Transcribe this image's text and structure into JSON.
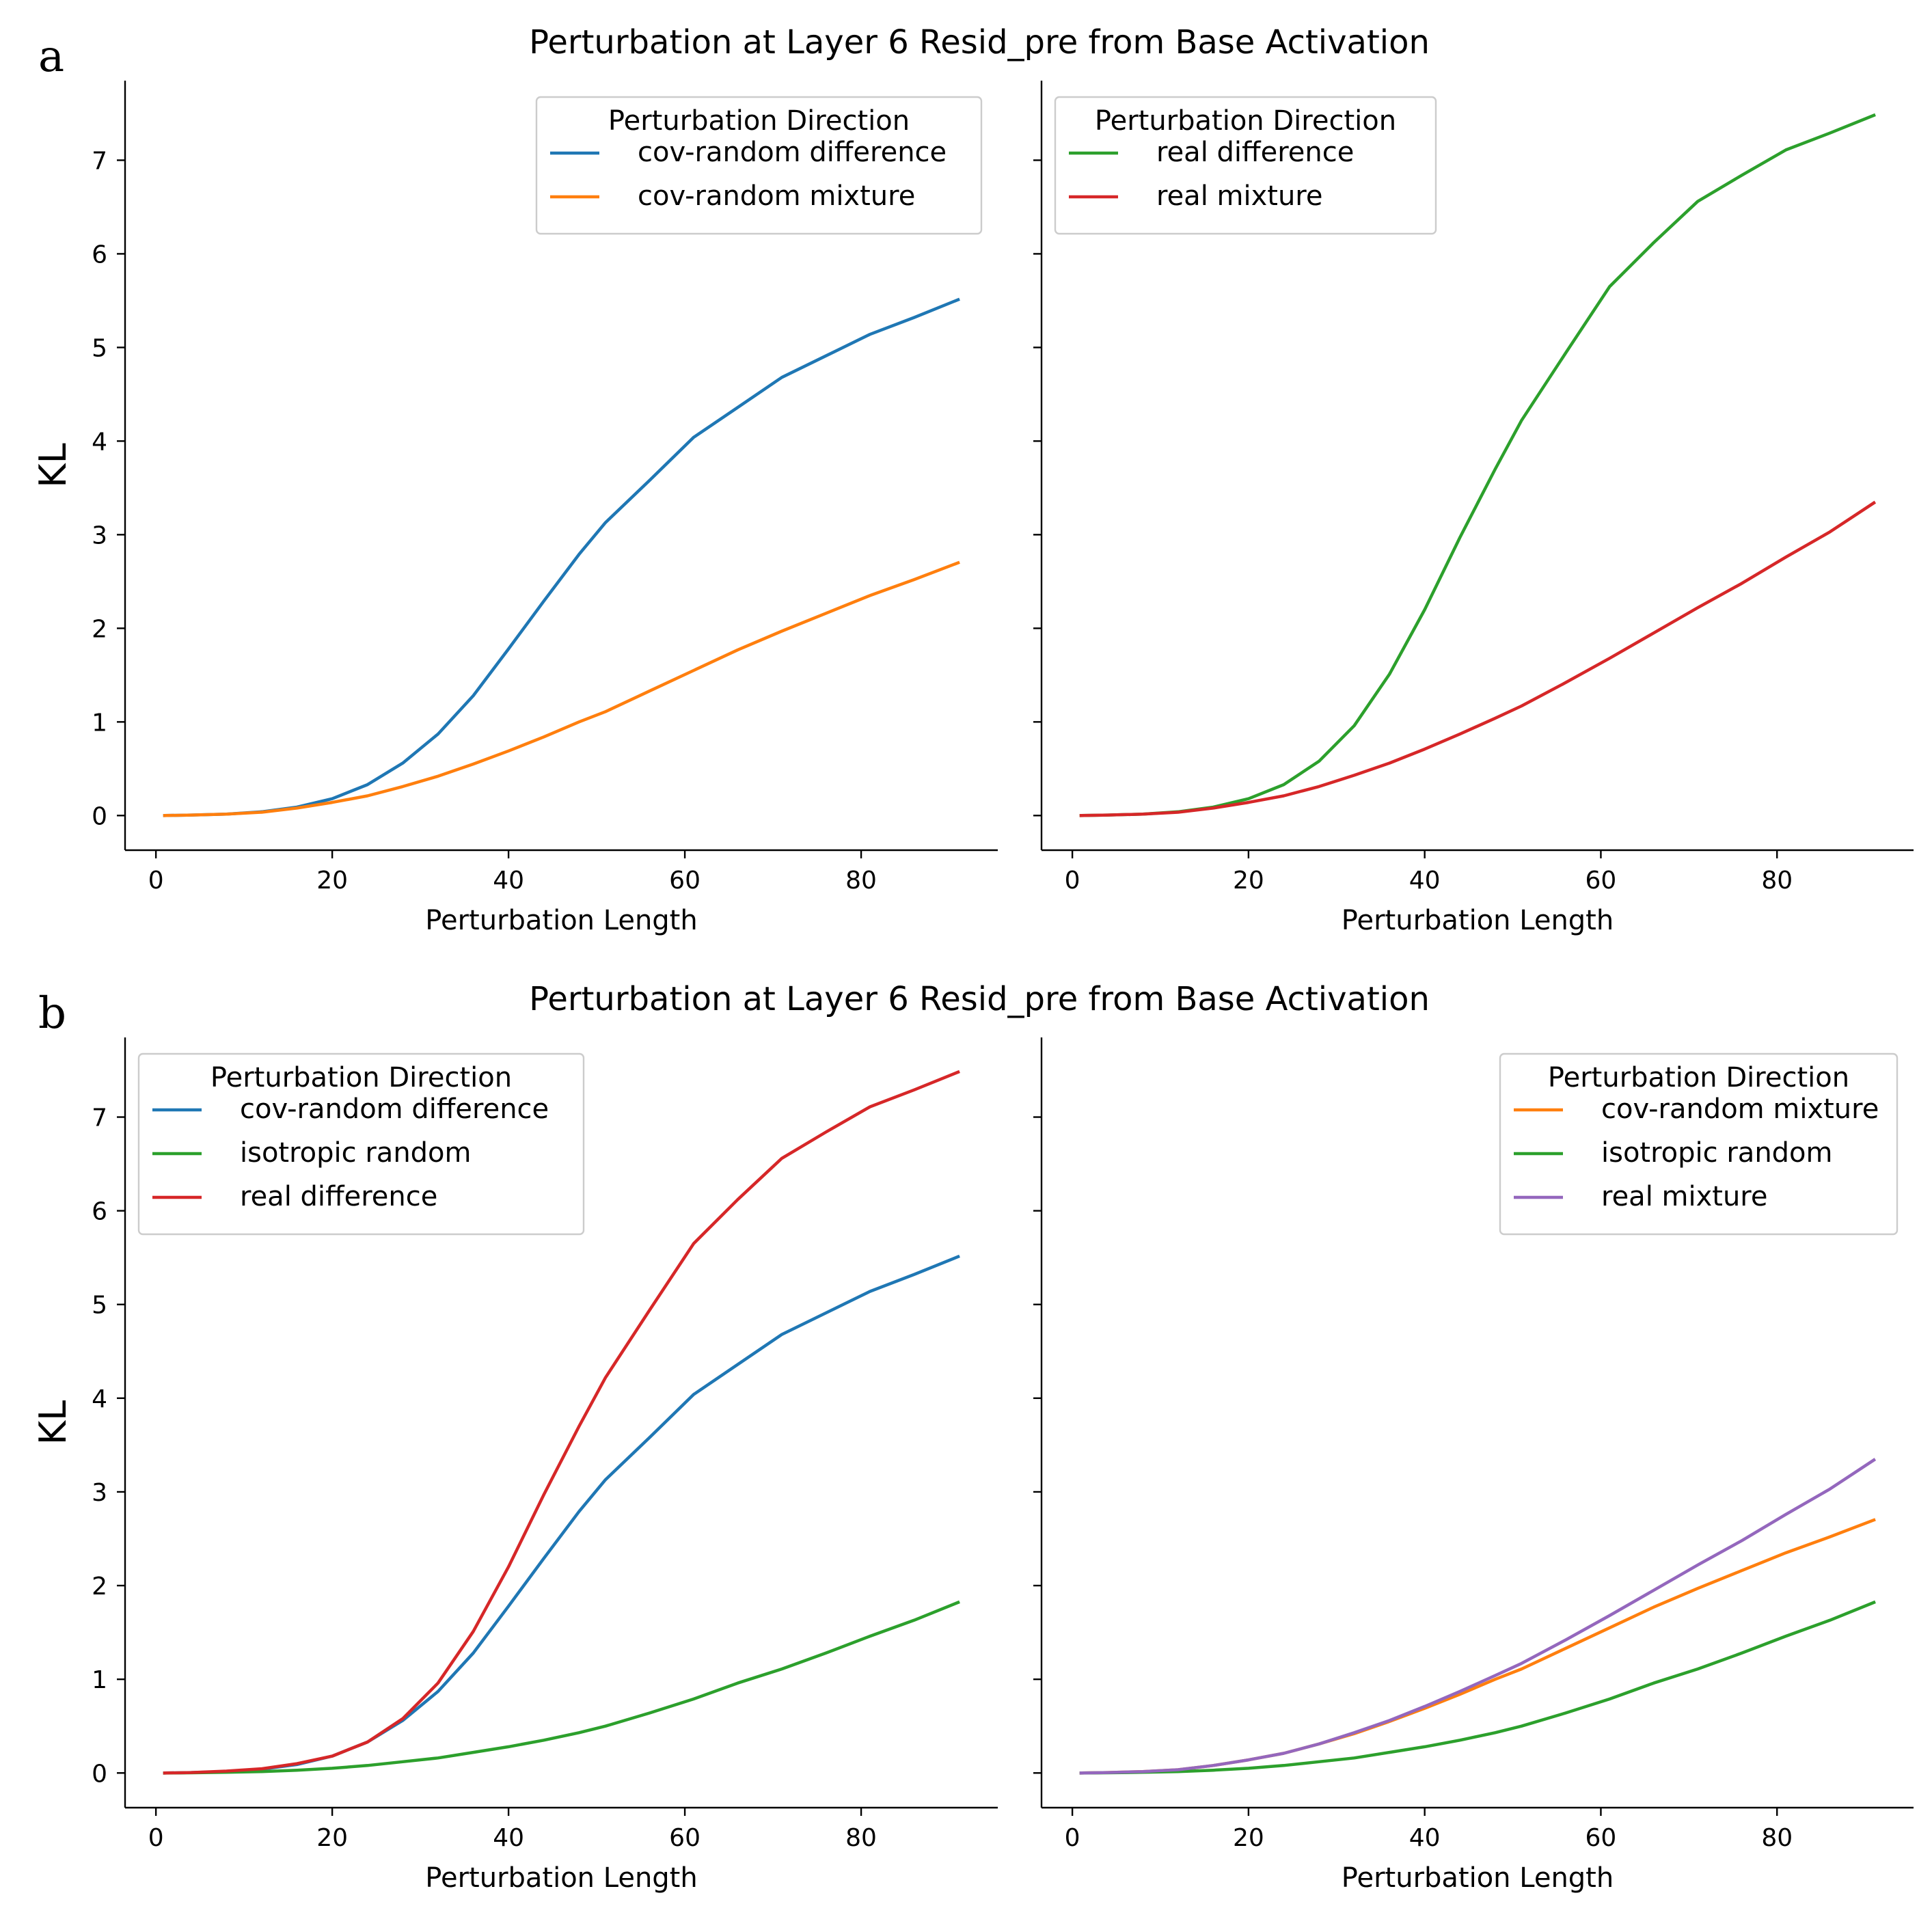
{
  "figure": {
    "groups": [
      {
        "letter": "a",
        "title": "Perturbation at Layer 6 Resid_pre from Base Activation"
      },
      {
        "letter": "b",
        "title": "Perturbation at Layer 6 Resid_pre from Base Activation"
      }
    ]
  },
  "colors": {
    "blue": "#1f77b4",
    "orange": "#ff7f0e",
    "green": "#2ca02c",
    "red": "#d62728",
    "purple": "#9467bd"
  },
  "chart_data": [
    {
      "id": "a-left",
      "type": "line",
      "group": 0,
      "column": 0,
      "xlabel": "Perturbation Length",
      "ylabel": "KL",
      "xlim": [
        -3.5,
        95.5
      ],
      "ylim": [
        -0.37,
        7.85
      ],
      "xticks": [
        0,
        20,
        40,
        60,
        80
      ],
      "yticks": [
        0,
        1,
        2,
        3,
        4,
        5,
        6,
        7
      ],
      "legend_title": "Perturbation Direction",
      "legend_loc": "upper right",
      "x": [
        1,
        4,
        8,
        12,
        16,
        20,
        24,
        28,
        32,
        36,
        40,
        44,
        48,
        51,
        56,
        61,
        66,
        71,
        76,
        81,
        86,
        91
      ],
      "series": [
        {
          "name": "cov-random difference",
          "color": "blue",
          "values": [
            0.0,
            0.005,
            0.015,
            0.04,
            0.09,
            0.18,
            0.33,
            0.56,
            0.87,
            1.28,
            1.78,
            2.29,
            2.79,
            3.13,
            3.58,
            4.04,
            4.36,
            4.68,
            4.91,
            5.14,
            5.32,
            5.51
          ]
        },
        {
          "name": "cov-random mixture",
          "color": "orange",
          "values": [
            0.0,
            0.005,
            0.015,
            0.035,
            0.08,
            0.14,
            0.21,
            0.31,
            0.42,
            0.55,
            0.69,
            0.84,
            1.0,
            1.11,
            1.33,
            1.55,
            1.77,
            1.97,
            2.16,
            2.35,
            2.52,
            2.7
          ]
        }
      ]
    },
    {
      "id": "a-right",
      "type": "line",
      "group": 0,
      "column": 1,
      "xlabel": "Perturbation Length",
      "ylabel": "",
      "xlim": [
        -3.5,
        95.5
      ],
      "ylim": [
        -0.37,
        7.85
      ],
      "xticks": [
        0,
        20,
        40,
        60,
        80
      ],
      "yticks": [
        0,
        1,
        2,
        3,
        4,
        5,
        6,
        7
      ],
      "legend_title": "Perturbation Direction",
      "legend_loc": "upper left",
      "x": [
        1,
        4,
        8,
        12,
        16,
        20,
        24,
        28,
        32,
        36,
        40,
        44,
        48,
        51,
        56,
        61,
        66,
        71,
        76,
        81,
        86,
        91
      ],
      "series": [
        {
          "name": "real difference",
          "color": "green",
          "values": [
            0.0,
            0.005,
            0.015,
            0.04,
            0.09,
            0.18,
            0.33,
            0.58,
            0.96,
            1.51,
            2.2,
            2.97,
            3.7,
            4.22,
            4.94,
            5.65,
            6.12,
            6.56,
            6.84,
            7.11,
            7.29,
            7.48
          ]
        },
        {
          "name": "real mixture",
          "color": "red",
          "values": [
            0.0,
            0.005,
            0.015,
            0.035,
            0.08,
            0.14,
            0.21,
            0.31,
            0.43,
            0.56,
            0.71,
            0.87,
            1.04,
            1.17,
            1.42,
            1.68,
            1.95,
            2.22,
            2.48,
            2.76,
            3.03,
            3.34
          ]
        }
      ]
    },
    {
      "id": "b-left",
      "type": "line",
      "group": 1,
      "column": 0,
      "xlabel": "Perturbation Length",
      "ylabel": "KL",
      "xlim": [
        -3.5,
        95.5
      ],
      "ylim": [
        -0.37,
        7.85
      ],
      "xticks": [
        0,
        20,
        40,
        60,
        80
      ],
      "yticks": [
        0,
        1,
        2,
        3,
        4,
        5,
        6,
        7
      ],
      "legend_title": "Perturbation Direction",
      "legend_loc": "upper left",
      "x": [
        1,
        4,
        8,
        12,
        16,
        20,
        24,
        28,
        32,
        36,
        40,
        44,
        48,
        51,
        56,
        61,
        66,
        71,
        76,
        81,
        86,
        91
      ],
      "series": [
        {
          "name": "cov-random difference",
          "color": "blue",
          "values": [
            0.0,
            0.005,
            0.015,
            0.04,
            0.09,
            0.18,
            0.33,
            0.56,
            0.87,
            1.28,
            1.78,
            2.29,
            2.79,
            3.13,
            3.58,
            4.04,
            4.36,
            4.68,
            4.91,
            5.14,
            5.32,
            5.51
          ]
        },
        {
          "name": "isotropic random",
          "color": "green",
          "values": [
            0.0,
            0.002,
            0.007,
            0.015,
            0.03,
            0.05,
            0.08,
            0.12,
            0.16,
            0.22,
            0.28,
            0.35,
            0.43,
            0.5,
            0.64,
            0.79,
            0.96,
            1.11,
            1.28,
            1.46,
            1.63,
            1.82
          ]
        },
        {
          "name": "real difference",
          "color": "red",
          "values": [
            0.0,
            0.005,
            0.02,
            0.045,
            0.1,
            0.18,
            0.33,
            0.58,
            0.96,
            1.51,
            2.2,
            2.97,
            3.7,
            4.22,
            4.94,
            5.65,
            6.12,
            6.56,
            6.84,
            7.11,
            7.29,
            7.48
          ]
        }
      ]
    },
    {
      "id": "b-right",
      "type": "line",
      "group": 1,
      "column": 1,
      "xlabel": "Perturbation Length",
      "ylabel": "",
      "xlim": [
        -3.5,
        95.5
      ],
      "ylim": [
        -0.37,
        7.85
      ],
      "xticks": [
        0,
        20,
        40,
        60,
        80
      ],
      "yticks": [
        0,
        1,
        2,
        3,
        4,
        5,
        6,
        7
      ],
      "legend_title": "Perturbation Direction",
      "legend_loc": "upper right",
      "x": [
        1,
        4,
        8,
        12,
        16,
        20,
        24,
        28,
        32,
        36,
        40,
        44,
        48,
        51,
        56,
        61,
        66,
        71,
        76,
        81,
        86,
        91
      ],
      "series": [
        {
          "name": "cov-random mixture",
          "color": "orange",
          "values": [
            0.0,
            0.005,
            0.015,
            0.035,
            0.08,
            0.14,
            0.21,
            0.31,
            0.42,
            0.55,
            0.69,
            0.84,
            1.0,
            1.11,
            1.33,
            1.55,
            1.77,
            1.97,
            2.16,
            2.35,
            2.52,
            2.7
          ]
        },
        {
          "name": "isotropic random",
          "color": "green",
          "values": [
            0.0,
            0.002,
            0.007,
            0.015,
            0.03,
            0.05,
            0.08,
            0.12,
            0.16,
            0.22,
            0.28,
            0.35,
            0.43,
            0.5,
            0.64,
            0.79,
            0.96,
            1.11,
            1.28,
            1.46,
            1.63,
            1.82
          ]
        },
        {
          "name": "real mixture",
          "color": "purple",
          "values": [
            0.0,
            0.005,
            0.015,
            0.035,
            0.08,
            0.14,
            0.21,
            0.31,
            0.43,
            0.56,
            0.71,
            0.87,
            1.04,
            1.17,
            1.42,
            1.68,
            1.95,
            2.22,
            2.48,
            2.76,
            3.03,
            3.34
          ]
        }
      ]
    }
  ]
}
